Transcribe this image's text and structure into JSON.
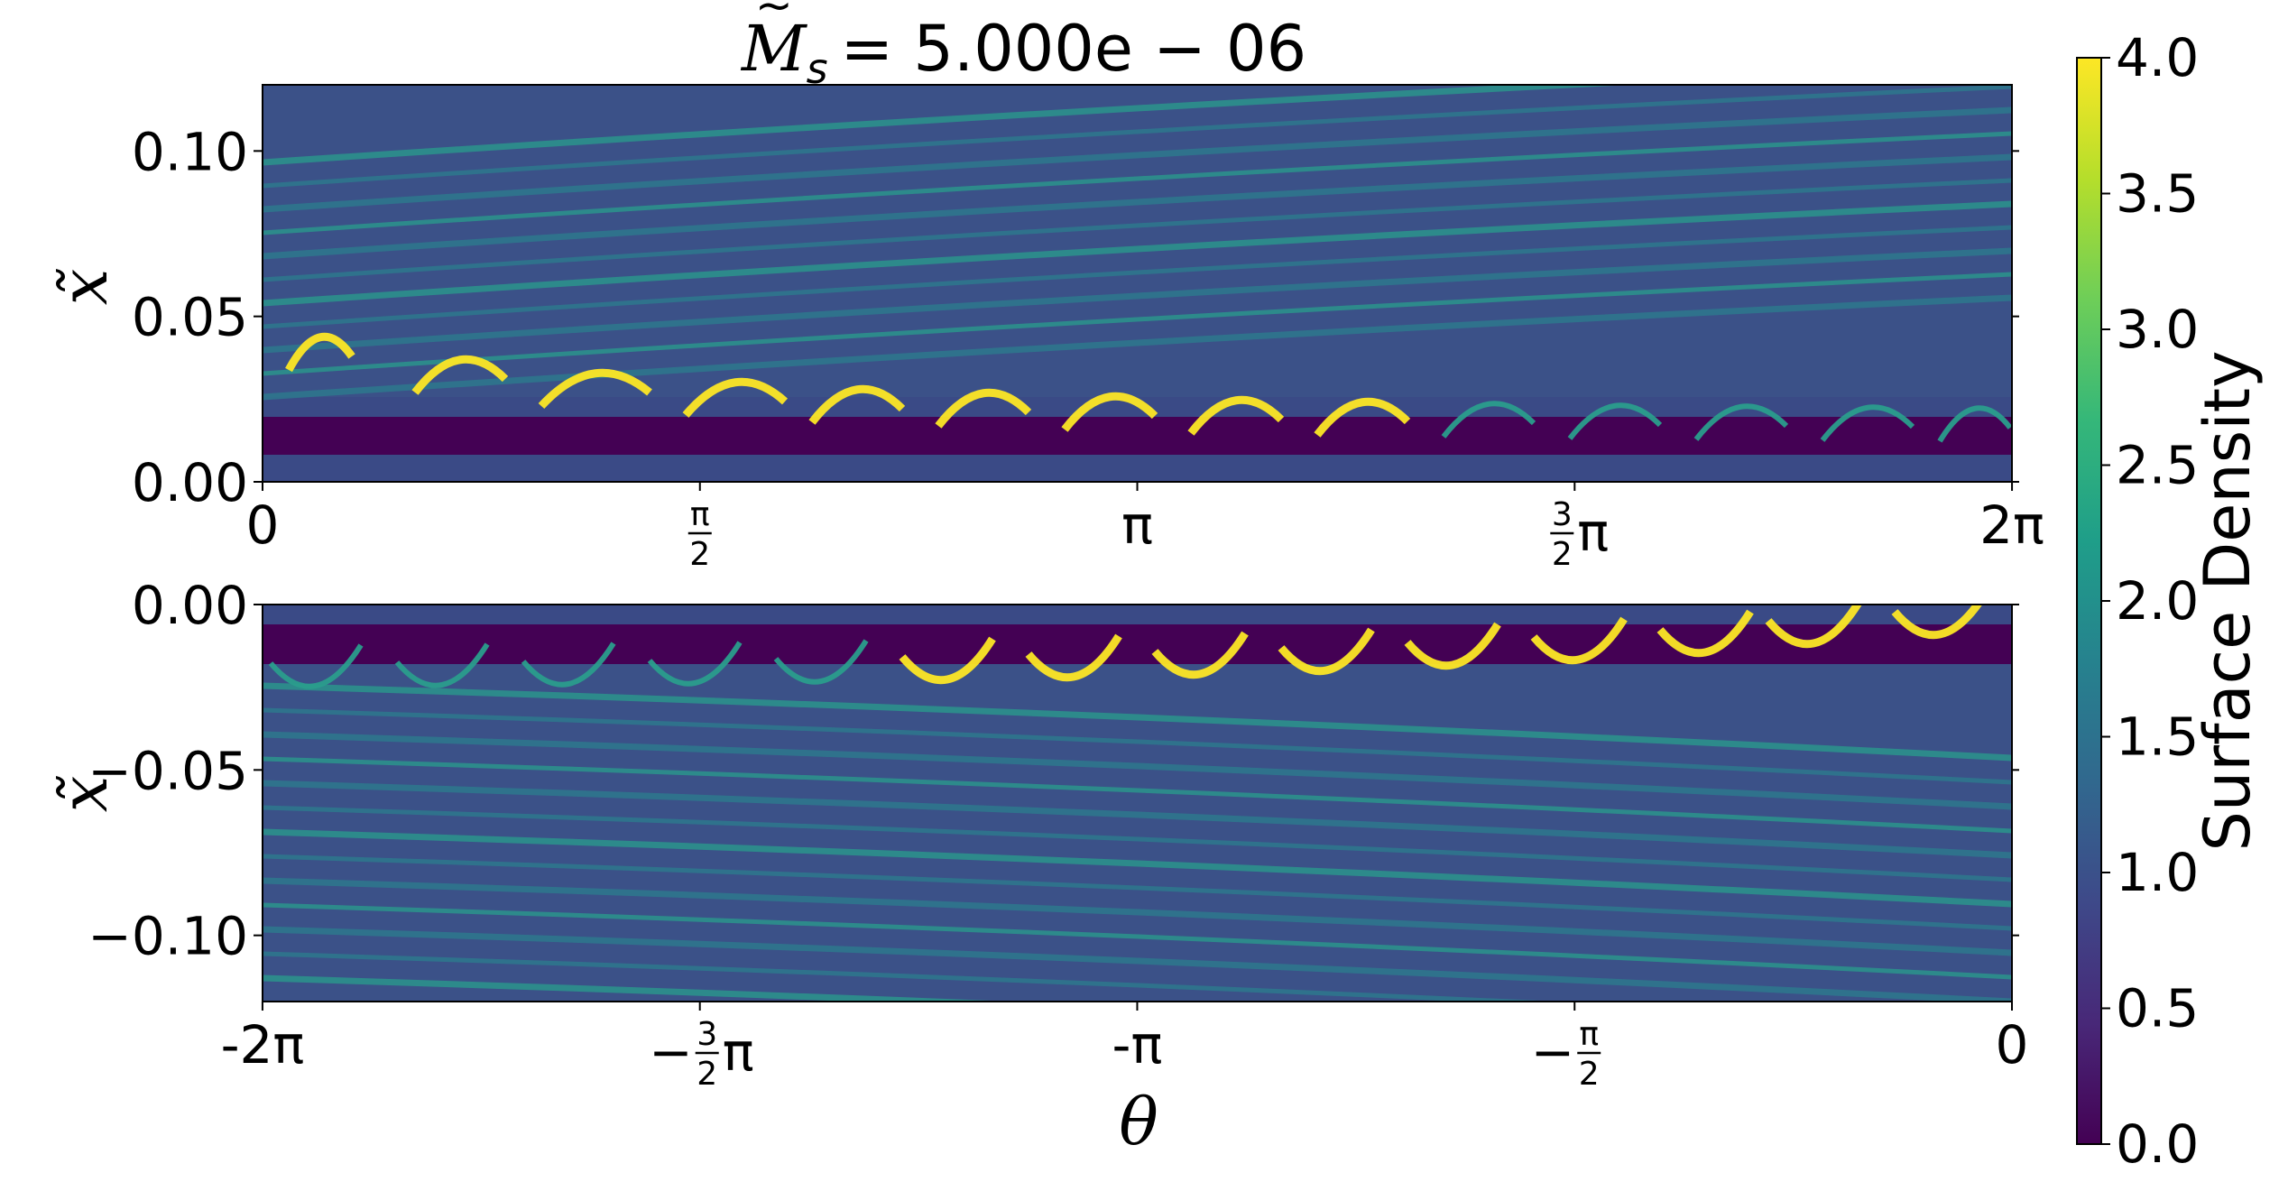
{
  "chart_data": [
    {
      "type": "heatmap",
      "panel": "top",
      "title_parts": {
        "symbol": "M",
        "subscript": "s",
        "equals_value": "= 5.000e − 06"
      },
      "ylabel": "x̃",
      "ylim": [
        0.0,
        0.12
      ],
      "xlim": [
        0,
        6.283
      ],
      "yticks": [
        {
          "value": 0.1,
          "label": "0.10"
        },
        {
          "value": 0.05,
          "label": "0.05"
        },
        {
          "value": 0.0,
          "label": "0.00"
        }
      ],
      "xticks": [
        {
          "value": 0,
          "label": "0"
        },
        {
          "value": 1.5708,
          "label": "",
          "frac_num": "π",
          "frac_den": "2",
          "suffix": ""
        },
        {
          "value": 3.1416,
          "label": "π"
        },
        {
          "value": 4.7124,
          "label": "",
          "frac_num": "3",
          "frac_den": "2",
          "suffix": "π"
        },
        {
          "value": 6.2832,
          "label": "2π"
        }
      ]
    },
    {
      "type": "heatmap",
      "panel": "bottom",
      "ylabel": "x̃",
      "xlabel": "θ",
      "ylim": [
        -0.12,
        0.0
      ],
      "xlim": [
        -6.283,
        0
      ],
      "yticks": [
        {
          "value": 0.0,
          "label": "0.00"
        },
        {
          "value": -0.05,
          "label": "−0.05"
        },
        {
          "value": -0.1,
          "label": "−0.10"
        }
      ],
      "xticks": [
        {
          "value": -6.2832,
          "label": "-2π"
        },
        {
          "value": -4.7124,
          "label": "",
          "prefix": "−",
          "frac_num": "3",
          "frac_den": "2",
          "suffix": "π"
        },
        {
          "value": -3.1416,
          "label": "-π"
        },
        {
          "value": -1.5708,
          "label": "",
          "prefix": "−",
          "frac_num": "π",
          "frac_den": "2",
          "suffix": ""
        },
        {
          "value": 0,
          "label": "0"
        }
      ]
    }
  ],
  "colorbar": {
    "label": "Surface Density",
    "range": [
      0.0,
      4.0
    ],
    "ticks": [
      "0.0",
      "0.5",
      "1.0",
      "1.5",
      "2.0",
      "2.5",
      "3.0",
      "3.5",
      "4.0"
    ],
    "colormap": "viridis",
    "stops": [
      "#440154",
      "#482878",
      "#3e4989",
      "#31688e",
      "#26828e",
      "#1f9e89",
      "#35b779",
      "#6ece58",
      "#b5de2b",
      "#fde725"
    ]
  }
}
